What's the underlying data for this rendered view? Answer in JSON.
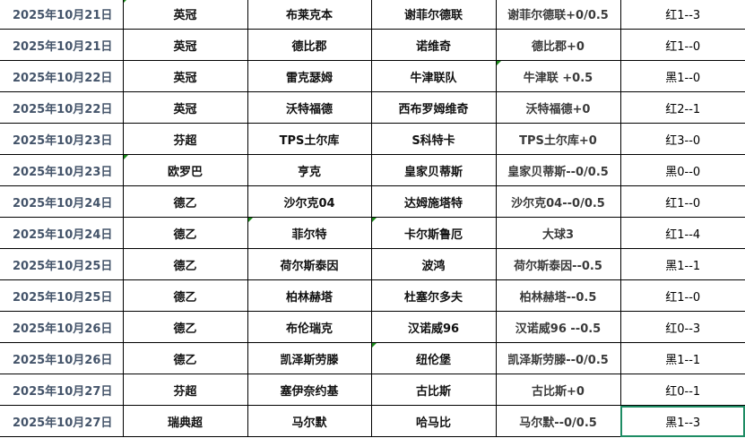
{
  "colors": {
    "date_text": "#44546a",
    "selection_border": "#1e8c64",
    "comment_marker": "#1a8a1a"
  },
  "rows": [
    {
      "date": "2025年10月21日",
      "league": "英冠",
      "home": "布莱克本",
      "away": "谢菲尔德联",
      "handicap": "谢菲尔德联+0/0.5",
      "result": "红1--3"
    },
    {
      "date": "2025年10月21日",
      "league": "英冠",
      "home": "德比郡",
      "away": "诺维奇",
      "handicap": "德比郡+0",
      "result": "红1--0"
    },
    {
      "date": "2025年10月22日",
      "league": "英冠",
      "home": "雷克瑟姆",
      "away": "牛津联队",
      "handicap": "牛津联  +0.5",
      "result": "黑1--0"
    },
    {
      "date": "2025年10月22日",
      "league": "英冠",
      "home": "沃特福德",
      "away": "西布罗姆维奇",
      "handicap": "沃特福德+0",
      "result": "红2--1"
    },
    {
      "date": "2025年10月23日",
      "league": "芬超",
      "home": "TPS土尔库",
      "away": "S科特卡",
      "handicap": "TPS土尔库+0",
      "result": "红3--0"
    },
    {
      "date": "2025年10月23日",
      "league": "欧罗巴",
      "home": "亨克",
      "away": "皇家贝蒂斯",
      "handicap": "皇家贝蒂斯--0/0.5",
      "result": "黑0--0"
    },
    {
      "date": "2025年10月24日",
      "league": "德乙",
      "home": "沙尔克04",
      "away": "达姆施塔特",
      "handicap": "沙尔克04--0/0.5",
      "result": "红1--0"
    },
    {
      "date": "2025年10月24日",
      "league": "德乙",
      "home": "菲尔特",
      "away": "卡尔斯鲁厄",
      "handicap": "大球3",
      "result": "红1--4"
    },
    {
      "date": "2025年10月25日",
      "league": "德乙",
      "home": "荷尔斯泰因",
      "away": "波鸿",
      "handicap": "荷尔斯泰因--0.5",
      "result": "黑1--1"
    },
    {
      "date": "2025年10月25日",
      "league": "德乙",
      "home": "柏林赫塔",
      "away": "杜塞尔多夫",
      "handicap": "柏林赫塔--0.5",
      "result": "红1--0"
    },
    {
      "date": "2025年10月26日",
      "league": "德乙",
      "home": "布伦瑞克",
      "away": "汉诺威96",
      "handicap": "汉诺威96 --0.5",
      "result": "红0--3"
    },
    {
      "date": "2025年10月26日",
      "league": "德乙",
      "home": "凯泽斯劳滕",
      "away": "纽伦堡",
      "handicap": "凯泽斯劳滕--0/0.5",
      "result": "黑1--1"
    },
    {
      "date": "2025年10月27日",
      "league": "芬超",
      "home": "塞伊奈约基",
      "away": "古比斯",
      "handicap": "古比斯+0",
      "result": "红0--1"
    },
    {
      "date": "2025年10月27日",
      "league": "瑞典超",
      "home": "马尔默",
      "away": "哈马比",
      "handicap": "马尔默--0/0.5",
      "result": "黑1--3"
    }
  ]
}
